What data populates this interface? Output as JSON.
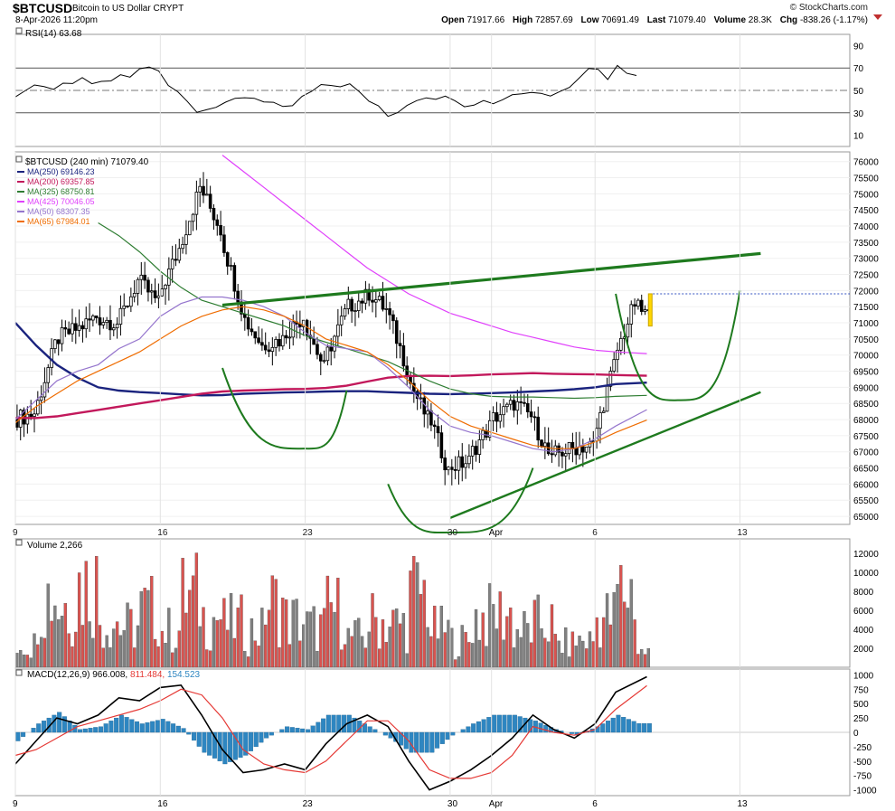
{
  "header": {
    "symbol": "$BTCUSD",
    "name": "Bitcoin to US Dollar",
    "market": "CRYPT",
    "timestamp": "8-Apr-2026 11:20pm",
    "brand": "© StockCharts.com",
    "open_label": "Open",
    "open": "71917.66",
    "high_label": "High",
    "high": "72857.69",
    "low_label": "Low",
    "low": "70691.49",
    "last_label": "Last",
    "last": "71079.40",
    "volume_label": "Volume",
    "volume": "28.3K",
    "chg_label": "Chg",
    "chg": "-838.26 (-1.17%)"
  },
  "colors": {
    "up": "#000000",
    "down": "#000000",
    "bullish": "#1e7a1e",
    "ma250": "#1a237e",
    "ma200": "#c2185b",
    "ma325": "#2e7d32",
    "ma425": "#e040fb",
    "ma50": "#9575cd",
    "ma65": "#ef6c00",
    "rsi": "#000000",
    "macd": "#000000",
    "signal": "#e53935",
    "hist": "#2e86c1",
    "vol_up": "#808080",
    "vol_down": "#d9534f"
  },
  "rsi_panel": {
    "label": "RSI(14) 63.68",
    "ticks": [
      "90",
      "70",
      "50",
      "30",
      "10"
    ]
  },
  "price_panel": {
    "label": "$BTCUSD (240 min) 71079.40",
    "legend": [
      {
        "text": "MA(250) 69146.23"
      },
      {
        "text": "MA(200) 69357.85"
      },
      {
        "text": "MA(325) 68750.81"
      },
      {
        "text": "MA(425) 70046.05"
      },
      {
        "text": "MA(50) 68307.35"
      },
      {
        "text": "MA(65) 67984.01"
      }
    ],
    "ticks": [
      "76000",
      "75500",
      "75000",
      "74500",
      "74000",
      "73500",
      "73000",
      "72500",
      "72000",
      "71500",
      "71000",
      "70500",
      "70000",
      "69500",
      "69000",
      "68500",
      "68000",
      "67500",
      "67000",
      "66500",
      "66000",
      "65500",
      "65000"
    ]
  },
  "volume_panel": {
    "label": "Volume 2,266",
    "ticks": [
      "12000",
      "10000",
      "8000",
      "6000",
      "4000",
      "2000"
    ]
  },
  "macd_panel": {
    "label": "MACD(12,26,9) 966.008, 811.484, 154.523",
    "label_parts": [
      "MACD(12,26,9)",
      "966.008",
      "811.484",
      "154.523"
    ],
    "ticks": [
      "1000",
      "750",
      "500",
      "250",
      "0",
      "-250",
      "-500",
      "-750",
      "-1000"
    ]
  },
  "x_labels": [
    "9",
    "16",
    "23",
    "30",
    "Apr",
    "6",
    "13"
  ],
  "chart_data": [
    {
      "type": "line",
      "title": "RSI(14) 63.68",
      "ylim": [
        0,
        100
      ],
      "reference_lines": [
        70,
        50,
        30
      ],
      "series": [
        {
          "name": "RSI(14)",
          "values": [
            44,
            50,
            55,
            53,
            52,
            57,
            56,
            60,
            55,
            59,
            57,
            63,
            62,
            68,
            71,
            67,
            55,
            48,
            40,
            30,
            33,
            36,
            40,
            43,
            45,
            44,
            40,
            38,
            35,
            37,
            45,
            50,
            55,
            53,
            52,
            56,
            48,
            40,
            35,
            27,
            31,
            36,
            40,
            44,
            42,
            46,
            42,
            36,
            38,
            40,
            38,
            42,
            45,
            47,
            49,
            48,
            46,
            50,
            54,
            60,
            71,
            70,
            61,
            72,
            66,
            63.68
          ]
        }
      ]
    },
    {
      "type": "candlestick",
      "title": "$BTCUSD (240 min) 71079.40",
      "ylim": [
        64750,
        76300
      ],
      "x": [
        "Mar 9",
        "Mar 10",
        "Mar 11",
        "Mar 12",
        "Mar 13",
        "Mar 14",
        "Mar 15",
        "Mar 16",
        "Mar 17",
        "Mar 18",
        "Mar 19",
        "Mar 20",
        "Mar 21",
        "Mar 22",
        "Mar 23",
        "Mar 24",
        "Mar 25",
        "Mar 26",
        "Mar 27",
        "Mar 28",
        "Mar 29",
        "Mar 30",
        "Mar 31",
        "Apr 1",
        "Apr 2",
        "Apr 3",
        "Apr 4",
        "Apr 5",
        "Apr 6",
        "Apr 7",
        "Apr 8"
      ],
      "close": [
        68200,
        70300,
        70800,
        71200,
        71000,
        72300,
        71600,
        73300,
        75200,
        73900,
        71500,
        70300,
        70500,
        71200,
        69600,
        71300,
        71800,
        71400,
        69600,
        68000,
        66400,
        66700,
        67800,
        68400,
        68100,
        66700,
        67100,
        67200,
        69700,
        71600,
        71079
      ],
      "series": [
        {
          "name": "MA(250)",
          "values": [
            71000,
            70300,
            69700,
            69300,
            69000,
            68900,
            68850,
            68820,
            68780,
            68750,
            68760,
            68800,
            68820,
            68840,
            68850,
            68870,
            68880,
            68880,
            68850,
            68830,
            68800,
            68790,
            68800,
            68820,
            68840,
            68870,
            68900,
            68940,
            69000,
            69100,
            69146
          ]
        },
        {
          "name": "MA(200)",
          "values": [
            68050,
            68050,
            68100,
            68200,
            68300,
            68400,
            68500,
            68600,
            68700,
            68800,
            68870,
            68900,
            68920,
            68940,
            68950,
            68980,
            69050,
            69180,
            69300,
            69350,
            69360,
            69350,
            69370,
            69400,
            69420,
            69440,
            69420,
            69410,
            69400,
            69380,
            69358
          ]
        },
        {
          "name": "MA(325)",
          "values": [
            null,
            null,
            null,
            null,
            74100,
            73700,
            73200,
            72600,
            72100,
            71700,
            71500,
            71300,
            71100,
            70900,
            70600,
            70400,
            70200,
            70000,
            69800,
            69500,
            69200,
            68950,
            68800,
            68720,
            68700,
            68700,
            68680,
            68660,
            68680,
            68720,
            68751
          ]
        },
        {
          "name": "MA(425)",
          "values": [
            null,
            null,
            null,
            null,
            null,
            null,
            null,
            null,
            null,
            null,
            76200,
            75700,
            75200,
            74700,
            74200,
            73700,
            73200,
            72700,
            72300,
            71900,
            71600,
            71300,
            71100,
            70900,
            70700,
            70550,
            70400,
            70250,
            70150,
            70100,
            70046
          ]
        },
        {
          "name": "MA(50)",
          "values": [
            68000,
            68600,
            69200,
            69500,
            69700,
            70200,
            70500,
            71200,
            71600,
            71800,
            71800,
            71700,
            71500,
            71200,
            70700,
            70300,
            70200,
            70100,
            69600,
            69000,
            68300,
            67800,
            67600,
            67500,
            67300,
            67100,
            67000,
            67100,
            67400,
            67800,
            68307
          ]
        },
        {
          "name": "MA(65)",
          "values": [
            67900,
            68400,
            68800,
            69200,
            69500,
            69800,
            70100,
            70500,
            70900,
            71200,
            71400,
            71500,
            71400,
            71200,
            70900,
            70500,
            70300,
            70100,
            69700,
            69200,
            68600,
            68100,
            67800,
            67600,
            67400,
            67200,
            67100,
            67100,
            67300,
            67600,
            67984
          ]
        }
      ],
      "annotations": [
        {
          "type": "trendline",
          "from": [
            "Mar 19",
            71550
          ],
          "to": [
            "Apr 14",
            73150
          ]
        },
        {
          "type": "trendline",
          "from": [
            "Mar 30",
            64950
          ],
          "to": [
            "Apr 14",
            68850
          ]
        },
        {
          "type": "rounded-bottom",
          "from": [
            "Mar 19",
            69600
          ],
          "low": [
            "Mar 23",
            67100
          ],
          "to": [
            "Mar 25",
            68900
          ]
        },
        {
          "type": "rounded-bottom",
          "from": [
            "Mar 27",
            66000
          ],
          "low": [
            "Mar 30",
            64500
          ],
          "to": [
            "Apr 3",
            66500
          ]
        },
        {
          "type": "rounded-bottom",
          "from": [
            "Apr 7",
            71900
          ],
          "low": [
            "Apr 10",
            68600
          ],
          "to": [
            "Apr 13",
            72000
          ]
        }
      ]
    },
    {
      "type": "bar",
      "title": "Volume 2,266",
      "ylim": [
        0,
        13500
      ],
      "values": [
        3500,
        11000,
        9500,
        12500,
        7000,
        6000,
        8500,
        5500,
        10500,
        7500,
        6500,
        5500,
        9500,
        7000,
        6000,
        8500,
        4500,
        7000,
        6500,
        11000,
        5500,
        4000,
        7500,
        8000,
        5500,
        6500,
        3500,
        4000,
        7500,
        11500,
        2266
      ]
    },
    {
      "type": "line",
      "title": "MACD(12,26,9)",
      "ylim": [
        -1100,
        1100
      ],
      "series": [
        {
          "name": "MACD",
          "values": [
            -550,
            -150,
            250,
            150,
            300,
            600,
            550,
            780,
            820,
            300,
            -300,
            -700,
            -650,
            -550,
            -650,
            -200,
            150,
            300,
            100,
            -500,
            -1000,
            -850,
            -650,
            -400,
            -100,
            300,
            50,
            -100,
            150,
            700,
            966
          ]
        },
        {
          "name": "Signal",
          "values": [
            -400,
            -300,
            -100,
            100,
            200,
            300,
            400,
            550,
            750,
            650,
            250,
            -300,
            -550,
            -650,
            -700,
            -500,
            -150,
            200,
            200,
            -150,
            -650,
            -800,
            -800,
            -700,
            -400,
            100,
            0,
            -50,
            50,
            400,
            811
          ]
        },
        {
          "name": "Histogram",
          "values": [
            -150,
            150,
            350,
            50,
            100,
            300,
            150,
            230,
            70,
            -350,
            -550,
            -400,
            -100,
            100,
            50,
            300,
            300,
            100,
            -100,
            -350,
            -350,
            -50,
            150,
            300,
            300,
            200,
            50,
            -50,
            100,
            300,
            155
          ]
        }
      ]
    }
  ]
}
